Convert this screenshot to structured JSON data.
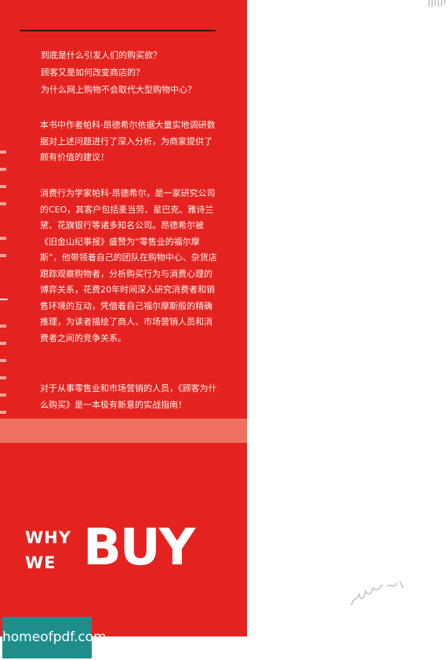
{
  "cover": {
    "background_color": "#e42320",
    "stripe_color": "#ee7161",
    "questions": [
      "到底是什么引发人们的购买欲？",
      "顾客又是如何改变商店的？",
      "为什么网上购物不会取代大型购物中心？"
    ],
    "paragraphs": [
      "本书中作者帕科·昂德希尔依据大量实地调研数据对上述问题进行了深入分析，为商家提供了颇有价值的建议！",
      "消费行为学家帕科·昂德希尔，是一家研究公司的CEO，其客户包括麦当劳、星巴克、雅诗兰黛、花旗银行等诸多知名公司。昂德希尔被《旧金山纪事报》盛赞为“零售业的福尔摩斯”，他带领着自己的团队在购物中心、杂货店跟踪观察购物者，分析购买行为与消费心理的博弈关系，花费20年时间深入研究消费者和销售环境的互动，凭借着自己福尔摩斯般的精确推理，为读者描绘了商人、市场营销人员和消费者之间的竞争关系。",
      "对于从事零售业和市场营销的人员，《顾客为什么购买》是一本极有新意的实战指南！"
    ],
    "logo": {
      "why": "WHY",
      "we": "WE",
      "buy": "BUY"
    }
  },
  "watermark": {
    "text": "homeofpdf.com",
    "color": "#1f8e8b"
  }
}
